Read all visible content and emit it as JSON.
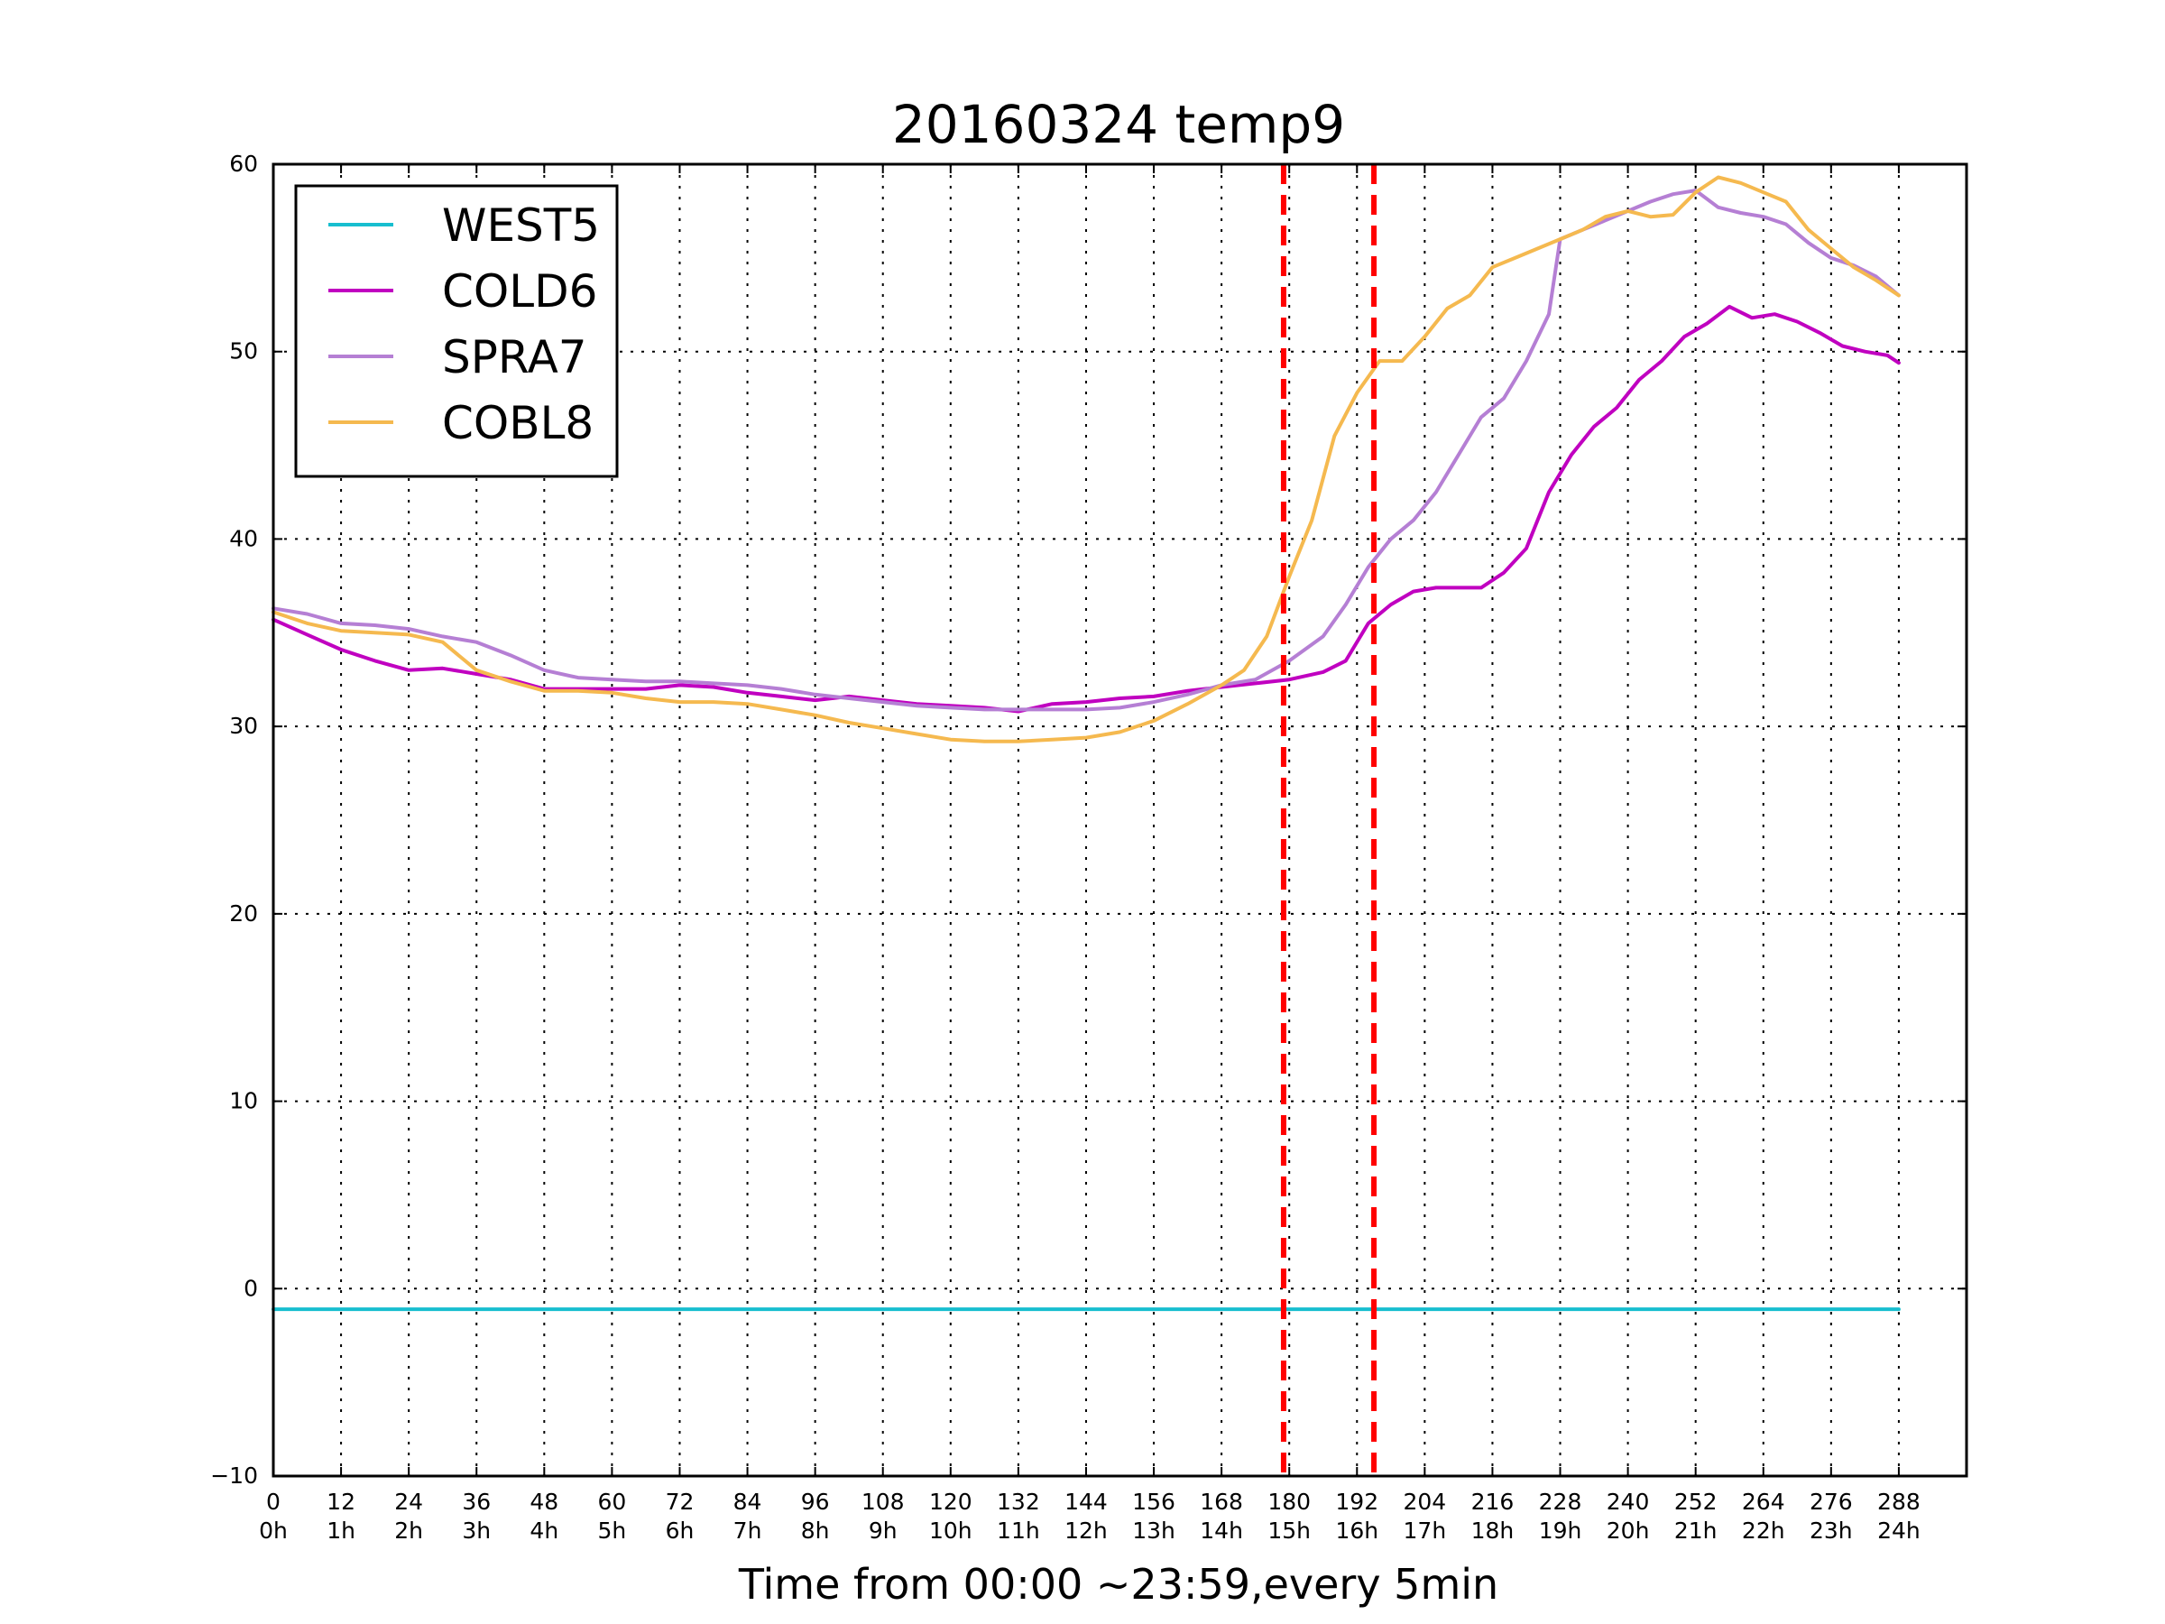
{
  "chart_data": {
    "type": "line",
    "title": "20160324 temp9",
    "xlabel": "Time from 00:00 ~23:59,every 5min",
    "ylabel": "",
    "xlim": [
      0,
      300
    ],
    "ylim": [
      -10,
      60
    ],
    "grid": true,
    "legend_position": "top-left",
    "y_ticks": [
      "−10",
      "0",
      "10",
      "20",
      "30",
      "40",
      "50",
      "60"
    ],
    "y_tick_values": [
      -10,
      0,
      10,
      20,
      30,
      40,
      50,
      60
    ],
    "x_ticks": [
      {
        "value": 0,
        "label": "0",
        "hour": "0h"
      },
      {
        "value": 12,
        "label": "12",
        "hour": "1h"
      },
      {
        "value": 24,
        "label": "24",
        "hour": "2h"
      },
      {
        "value": 36,
        "label": "36",
        "hour": "3h"
      },
      {
        "value": 48,
        "label": "48",
        "hour": "4h"
      },
      {
        "value": 60,
        "label": "60",
        "hour": "5h"
      },
      {
        "value": 72,
        "label": "72",
        "hour": "6h"
      },
      {
        "value": 84,
        "label": "84",
        "hour": "7h"
      },
      {
        "value": 96,
        "label": "96",
        "hour": "8h"
      },
      {
        "value": 108,
        "label": "108",
        "hour": "9h"
      },
      {
        "value": 120,
        "label": "120",
        "hour": "10h"
      },
      {
        "value": 132,
        "label": "132",
        "hour": "11h"
      },
      {
        "value": 144,
        "label": "144",
        "hour": "12h"
      },
      {
        "value": 156,
        "label": "156",
        "hour": "13h"
      },
      {
        "value": 168,
        "label": "168",
        "hour": "14h"
      },
      {
        "value": 180,
        "label": "180",
        "hour": "15h"
      },
      {
        "value": 192,
        "label": "192",
        "hour": "16h"
      },
      {
        "value": 204,
        "label": "204",
        "hour": "17h"
      },
      {
        "value": 216,
        "label": "216",
        "hour": "18h"
      },
      {
        "value": 228,
        "label": "228",
        "hour": "19h"
      },
      {
        "value": 240,
        "label": "240",
        "hour": "20h"
      },
      {
        "value": 252,
        "label": "252",
        "hour": "21h"
      },
      {
        "value": 264,
        "label": "264",
        "hour": "22h"
      },
      {
        "value": 276,
        "label": "276",
        "hour": "23h"
      },
      {
        "value": 288,
        "label": "288",
        "hour": "24h"
      }
    ],
    "vertical_markers": {
      "x": [
        179,
        195
      ],
      "color": "#ff0000",
      "style": "dashed"
    },
    "series": [
      {
        "name": "WEST5",
        "color": "#17becf",
        "x": [
          0,
          288
        ],
        "y": [
          -1.1,
          -1.1
        ]
      },
      {
        "name": "COLD6",
        "color": "#c000c0",
        "x": [
          0,
          6,
          12,
          18,
          24,
          30,
          36,
          42,
          48,
          54,
          60,
          66,
          72,
          78,
          84,
          90,
          96,
          102,
          108,
          114,
          120,
          126,
          132,
          138,
          144,
          150,
          156,
          162,
          168,
          174,
          180,
          186,
          190,
          194,
          198,
          202,
          206,
          210,
          214,
          218,
          222,
          226,
          230,
          234,
          238,
          242,
          246,
          250,
          254,
          258,
          262,
          266,
          270,
          274,
          278,
          282,
          286,
          288
        ],
        "y": [
          35.7,
          34.9,
          34.1,
          33.5,
          33.0,
          33.1,
          32.8,
          32.5,
          32.0,
          32.0,
          32.0,
          32.0,
          32.2,
          32.1,
          31.8,
          31.6,
          31.4,
          31.6,
          31.4,
          31.2,
          31.1,
          31.0,
          30.8,
          31.2,
          31.3,
          31.5,
          31.6,
          31.9,
          32.1,
          32.3,
          32.5,
          32.9,
          33.5,
          35.5,
          36.5,
          37.2,
          37.4,
          37.4,
          37.4,
          38.2,
          39.5,
          42.5,
          44.5,
          46.0,
          47.0,
          48.5,
          49.5,
          50.8,
          51.5,
          52.4,
          51.8,
          52.0,
          51.6,
          51.0,
          50.3,
          50.0,
          49.8,
          49.4
        ]
      },
      {
        "name": "SPRA7",
        "color": "#b57fd4",
        "x": [
          0,
          6,
          12,
          18,
          24,
          30,
          36,
          42,
          48,
          54,
          60,
          66,
          72,
          78,
          84,
          90,
          96,
          102,
          108,
          114,
          120,
          126,
          132,
          138,
          144,
          150,
          156,
          162,
          168,
          174,
          180,
          186,
          190,
          194,
          198,
          202,
          206,
          210,
          214,
          218,
          222,
          226,
          228,
          232,
          236,
          240,
          244,
          248,
          252,
          256,
          260,
          264,
          268,
          272,
          276,
          280,
          284,
          288
        ],
        "y": [
          36.3,
          36.0,
          35.5,
          35.4,
          35.2,
          34.8,
          34.5,
          33.8,
          33.0,
          32.6,
          32.5,
          32.4,
          32.4,
          32.3,
          32.2,
          32.0,
          31.7,
          31.5,
          31.3,
          31.1,
          31.0,
          30.9,
          30.9,
          30.9,
          30.9,
          31.0,
          31.3,
          31.7,
          32.2,
          32.5,
          33.5,
          34.8,
          36.5,
          38.5,
          40.0,
          41.0,
          42.5,
          44.5,
          46.5,
          47.5,
          49.5,
          52.0,
          56.0,
          56.5,
          57.0,
          57.5,
          58.0,
          58.4,
          58.6,
          57.7,
          57.4,
          57.2,
          56.8,
          55.8,
          55.0,
          54.6,
          54.0,
          53.0
        ]
      },
      {
        "name": "COBL8",
        "color": "#f5b94f",
        "x": [
          0,
          6,
          12,
          18,
          24,
          30,
          36,
          42,
          48,
          54,
          60,
          66,
          72,
          78,
          84,
          90,
          96,
          102,
          108,
          114,
          120,
          126,
          132,
          138,
          144,
          150,
          156,
          162,
          168,
          172,
          176,
          180,
          184,
          188,
          192,
          196,
          200,
          204,
          208,
          212,
          216,
          220,
          224,
          228,
          232,
          236,
          240,
          244,
          248,
          252,
          256,
          260,
          264,
          268,
          272,
          276,
          280,
          284,
          288
        ],
        "y": [
          36.1,
          35.5,
          35.1,
          35.0,
          34.9,
          34.5,
          33.0,
          32.4,
          31.9,
          31.9,
          31.8,
          31.5,
          31.3,
          31.3,
          31.2,
          30.9,
          30.6,
          30.2,
          29.9,
          29.6,
          29.3,
          29.2,
          29.2,
          29.3,
          29.4,
          29.7,
          30.3,
          31.2,
          32.2,
          33.0,
          34.8,
          38.0,
          41.0,
          45.5,
          47.8,
          49.5,
          49.5,
          50.8,
          52.3,
          53.0,
          54.5,
          55.0,
          55.5,
          56.0,
          56.5,
          57.2,
          57.5,
          57.2,
          57.3,
          58.5,
          59.3,
          59.0,
          58.5,
          58.0,
          56.5,
          55.5,
          54.5,
          53.8,
          53.0
        ]
      }
    ]
  }
}
